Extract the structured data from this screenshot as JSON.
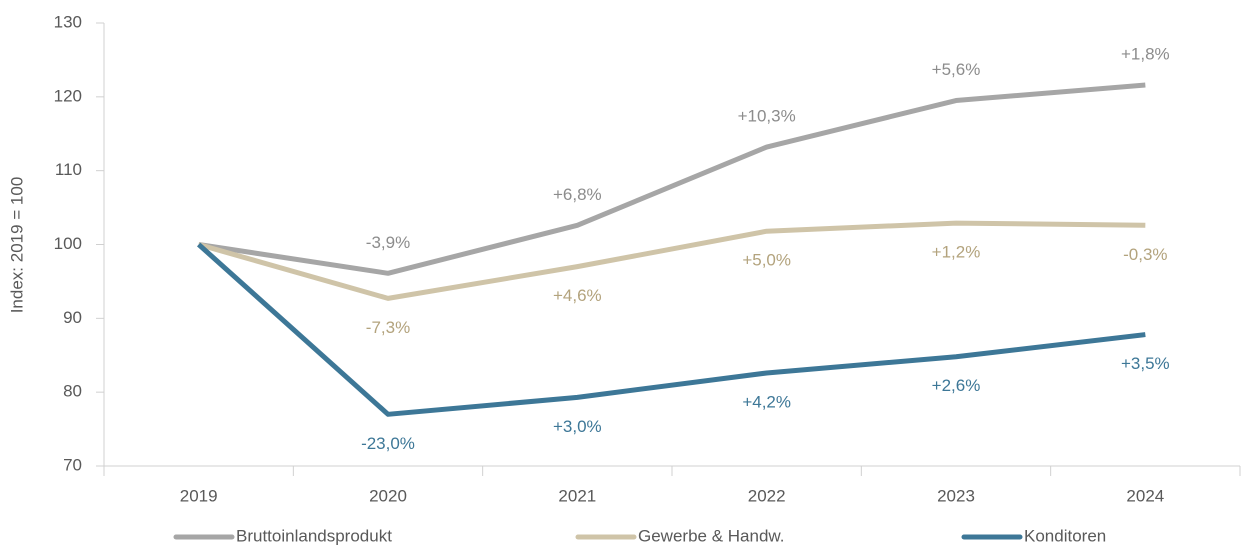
{
  "chart_data": {
    "type": "line",
    "y_label": "Index: 2019 = 100",
    "categories": [
      "2019",
      "2020",
      "2021",
      "2022",
      "2023",
      "2024"
    ],
    "series": [
      {
        "name": "Bruttoinlandsprodukt",
        "color": "#a6a6a6",
        "label_color": "#8c8c8c",
        "label_position": "above",
        "values": [
          100,
          96.1,
          102.6,
          113.2,
          119.5,
          121.6
        ],
        "value_labels": [
          null,
          "-3,9%",
          "+6,8%",
          "+10,3%",
          "+5,6%",
          "+1,8%"
        ]
      },
      {
        "name": "Gewerbe & Handw.",
        "color": "#cfc4a8",
        "label_color": "#b3a37d",
        "label_position": "below",
        "values": [
          100,
          92.7,
          97.0,
          101.8,
          102.9,
          102.6
        ],
        "value_labels": [
          null,
          "-7,3%",
          "+4,6%",
          "+5,0%",
          "+1,2%",
          "-0,3%"
        ]
      },
      {
        "name": "Konditoren",
        "color": "#3d7797",
        "label_color": "#3d7797",
        "label_position": "below",
        "values": [
          100,
          77.0,
          79.3,
          82.6,
          84.8,
          87.8
        ],
        "value_labels": [
          null,
          "-23,0%",
          "+3,0%",
          "+4,2%",
          "+2,6%",
          "+3,5%"
        ]
      }
    ],
    "ylim": [
      70,
      130
    ],
    "yticks": [
      70,
      80,
      90,
      100,
      110,
      120,
      130
    ],
    "grid": false,
    "legend": "bottom"
  }
}
